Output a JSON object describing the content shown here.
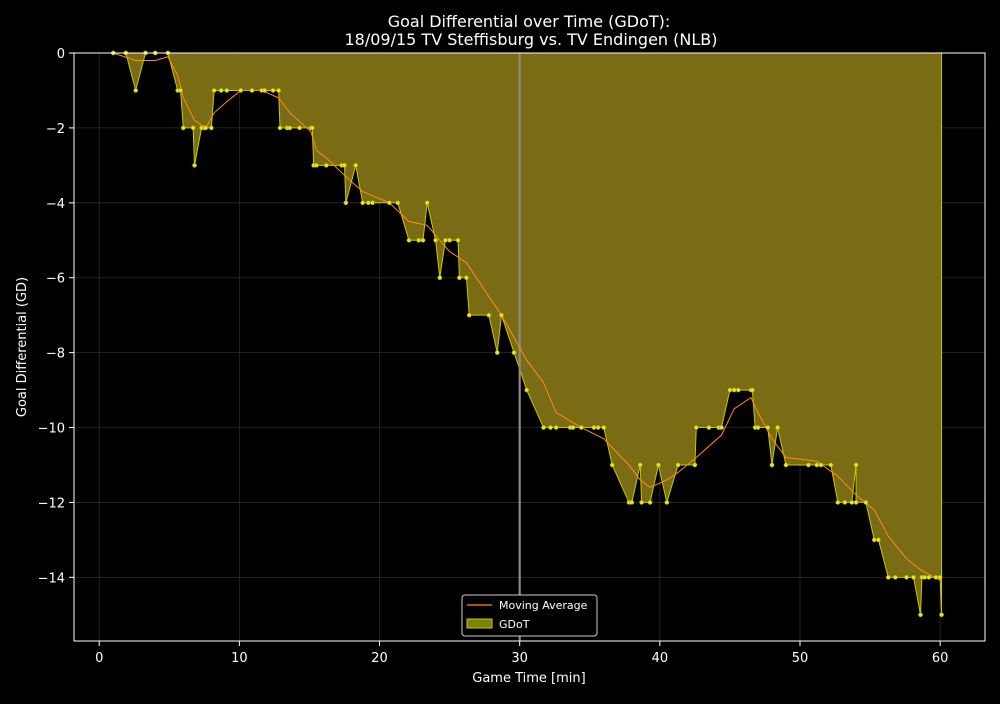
{
  "chart_data": {
    "type": "area",
    "title_line1": "Goal Differential over Time (GDoT):",
    "title_line2": "18/09/15 TV Steffisburg  vs.  TV Endingen (NLB)",
    "xlabel": "Game Time [min]",
    "ylabel": "Goal Differential (GD)",
    "xlim": [
      -1.8,
      63.2
    ],
    "ylim": [
      -15.7,
      0
    ],
    "xticks": [
      0,
      10,
      20,
      30,
      40,
      50,
      60
    ],
    "yticks": [
      0,
      -2,
      -4,
      -6,
      -8,
      -10,
      -12,
      -14
    ],
    "grid": true,
    "vline_x": 30,
    "legend": {
      "position": "bottom-center",
      "entries": [
        {
          "label": "Moving Average",
          "color": "#ff8c1a",
          "kind": "line"
        },
        {
          "label": "GDoT",
          "color": "#808000",
          "kind": "area"
        }
      ]
    },
    "colors": {
      "area_fill": "#7f7215",
      "area_edge": "#c8c800",
      "markers": "#e6e61e",
      "moving_average": "#ff8c1a",
      "vline": "#8a8a8a",
      "grid": "#2a2a2a",
      "axes": "#ffffff"
    },
    "series": [
      {
        "name": "GDoT",
        "x": [
          1.0,
          1.9,
          2.6,
          3.3,
          4.0,
          4.9,
          5.6,
          5.8,
          6.0,
          6.7,
          6.8,
          7.3,
          7.5,
          7.6,
          8.0,
          8.2,
          8.7,
          9.1,
          10.1,
          10.9,
          11.6,
          11.8,
          12.4,
          12.8,
          12.9,
          13.4,
          13.6,
          14.3,
          15.1,
          15.2,
          15.3,
          15.5,
          16.2,
          17.3,
          17.5,
          17.6,
          18.3,
          18.8,
          19.2,
          19.5,
          20.7,
          21.3,
          22.1,
          22.8,
          23.1,
          23.4,
          24.0,
          24.3,
          24.7,
          25.0,
          25.6,
          25.7,
          26.2,
          26.4,
          27.8,
          28.4,
          28.7,
          29.6,
          30.5,
          31.7,
          32.2,
          32.6,
          33.6,
          33.8,
          34.4,
          35.3,
          35.6,
          36.0,
          36.6,
          37.8,
          38.0,
          38.6,
          38.7,
          39.3,
          39.9,
          40.5,
          41.3,
          42.5,
          42.6,
          43.5,
          44.2,
          44.4,
          45.0,
          45.3,
          45.6,
          46.5,
          46.6,
          46.8,
          47.0,
          47.7,
          48.0,
          48.4,
          49.0,
          50.6,
          51.2,
          51.5,
          52.2,
          52.7,
          53.2,
          53.7,
          54.0,
          54.0,
          54.7,
          55.3,
          55.6,
          56.3,
          56.8,
          57.6,
          58.1,
          58.6,
          58.7,
          58.9,
          59.2,
          59.7,
          60.0,
          60.1
        ],
        "values": [
          0,
          0,
          -1,
          0,
          0,
          0,
          -1,
          -1,
          -2,
          -2,
          -3,
          -2,
          -2,
          -2,
          -2,
          -1,
          -1,
          -1,
          -1,
          -1,
          -1,
          -1,
          -1,
          -1,
          -2,
          -2,
          -2,
          -2,
          -2,
          -2,
          -3,
          -3,
          -3,
          -3,
          -3,
          -4,
          -3,
          -4,
          -4,
          -4,
          -4,
          -4,
          -5,
          -5,
          -5,
          -4,
          -5,
          -6,
          -5,
          -5,
          -5,
          -6,
          -6,
          -7,
          -7,
          -8,
          -7,
          -8,
          -9,
          -10,
          -10,
          -10,
          -10,
          -10,
          -10,
          -10,
          -10,
          -10,
          -11,
          -12,
          -12,
          -11,
          -12,
          -12,
          -11,
          -12,
          -11,
          -11,
          -10,
          -10,
          -10,
          -10,
          -9,
          -9,
          -9,
          -9,
          -9,
          -10,
          -10,
          -10,
          -11,
          -10,
          -11,
          -11,
          -11,
          -11,
          -11,
          -12,
          -12,
          -12,
          -11,
          -12,
          -12,
          -13,
          -13,
          -14,
          -14,
          -14,
          -14,
          -15,
          -14,
          -14,
          -14,
          -14,
          -14,
          -15
        ]
      },
      {
        "name": "Moving Average",
        "x": [
          1.0,
          2.6,
          4.0,
          4.9,
          5.6,
          6.0,
          6.8,
          7.6,
          8.2,
          9.1,
          10.1,
          11.6,
          12.8,
          13.6,
          15.1,
          15.5,
          16.2,
          17.6,
          18.8,
          20.7,
          22.1,
          23.4,
          24.3,
          25.0,
          26.2,
          27.8,
          28.7,
          29.6,
          30.5,
          31.7,
          32.6,
          34.4,
          36.0,
          37.8,
          38.6,
          39.3,
          40.5,
          41.3,
          42.6,
          44.4,
          45.3,
          46.5,
          47.0,
          48.0,
          49.0,
          51.2,
          52.7,
          54.0,
          55.3,
          56.3,
          57.6,
          58.6,
          60.1
        ],
        "values": [
          0,
          -0.2,
          -0.2,
          -0.1,
          -0.6,
          -1.2,
          -1.8,
          -2.0,
          -1.6,
          -1.3,
          -1.0,
          -1.0,
          -1.2,
          -1.6,
          -2.1,
          -2.6,
          -2.8,
          -3.3,
          -3.7,
          -4.0,
          -4.5,
          -4.6,
          -5.0,
          -5.3,
          -5.6,
          -6.5,
          -7.0,
          -7.6,
          -8.2,
          -8.8,
          -9.6,
          -10.0,
          -10.3,
          -11.0,
          -11.4,
          -11.6,
          -11.4,
          -11.2,
          -10.8,
          -10.2,
          -9.5,
          -9.2,
          -9.6,
          -10.3,
          -10.8,
          -10.9,
          -11.3,
          -11.8,
          -12.2,
          -12.9,
          -13.5,
          -13.8,
          -14.1
        ]
      }
    ]
  }
}
